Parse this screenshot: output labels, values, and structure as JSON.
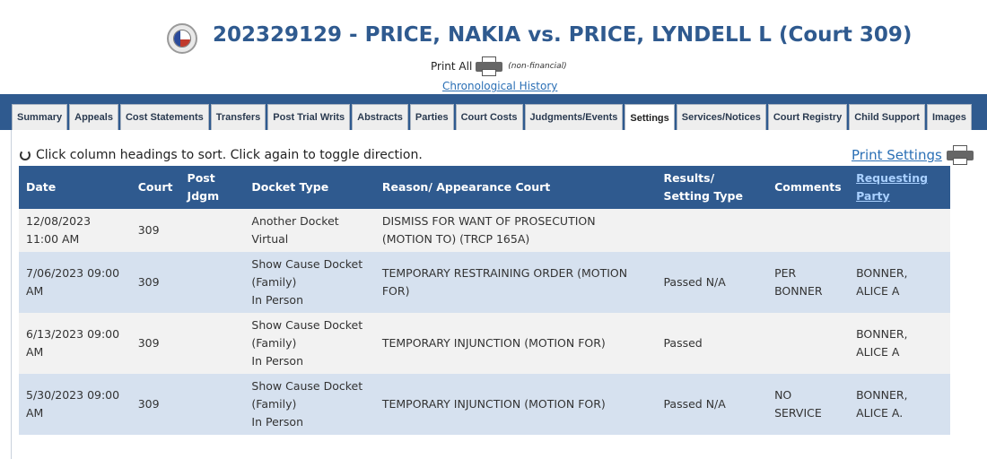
{
  "header": {
    "title": "202329129 - PRICE, NAKIA vs. PRICE, LYNDELL L (Court 309)",
    "print_all_label": "Print All",
    "print_all_note": "(non-financial)",
    "chronological_history_link": "Chronological History"
  },
  "tabs": [
    {
      "label": "Summary",
      "active": false
    },
    {
      "label": "Appeals",
      "active": false
    },
    {
      "label": "Cost Statements",
      "active": false
    },
    {
      "label": "Transfers",
      "active": false
    },
    {
      "label": "Post Trial Writs",
      "active": false
    },
    {
      "label": "Abstracts",
      "active": false
    },
    {
      "label": "Parties",
      "active": false
    },
    {
      "label": "Court Costs",
      "active": false
    },
    {
      "label": "Judgments/Events",
      "active": false
    },
    {
      "label": "Settings",
      "active": true
    },
    {
      "label": "Services/Notices",
      "active": false
    },
    {
      "label": "Court Registry",
      "active": false
    },
    {
      "label": "Child Support",
      "active": false
    },
    {
      "label": "Images",
      "active": false
    }
  ],
  "settings": {
    "hint": "Click column headings to sort. Click again to toggle direction.",
    "print_settings_link": "Print Settings",
    "columns": [
      "Date",
      "Court",
      "Post Jdgm",
      "Docket Type",
      "Reason/ Appearance Court",
      "Results/ Setting Type",
      "Comments",
      "Requesting Party"
    ],
    "rows": [
      {
        "date": "12/08/2023 11:00 AM",
        "court": "309",
        "post_jdgm": "",
        "docket_type": [
          "Another Docket",
          "Virtual"
        ],
        "reason": "DISMISS FOR WANT OF PROSECUTION (MOTION TO) (TRCP 165A)",
        "results": "",
        "comments": "",
        "requesting_party": ""
      },
      {
        "date": "7/06/2023 09:00 AM",
        "court": "309",
        "post_jdgm": "",
        "docket_type": [
          "Show Cause Docket",
          "(Family)",
          "In Person"
        ],
        "reason": "TEMPORARY RESTRAINING ORDER (MOTION FOR)",
        "results": "Passed N/A",
        "comments": "PER BONNER",
        "requesting_party": "BONNER, ALICE A"
      },
      {
        "date": "6/13/2023 09:00 AM",
        "court": "309",
        "post_jdgm": "",
        "docket_type": [
          "Show Cause Docket",
          "(Family)",
          "In Person"
        ],
        "reason": "TEMPORARY INJUNCTION (MOTION FOR)",
        "results": "Passed",
        "comments": "",
        "requesting_party": "BONNER, ALICE A"
      },
      {
        "date": "5/30/2023 09:00 AM",
        "court": "309",
        "post_jdgm": "",
        "docket_type": [
          "Show Cause Docket",
          "(Family)",
          "In Person"
        ],
        "reason": "TEMPORARY INJUNCTION (MOTION FOR)",
        "results": "Passed N/A",
        "comments": "NO SERVICE",
        "requesting_party": "BONNER, ALICE A."
      }
    ]
  },
  "colors": {
    "header_blue": "#2f5a8f",
    "link_blue": "#2a6fb5",
    "row_alt": "#d6e1ef",
    "row_base": "#f2f2f2"
  }
}
